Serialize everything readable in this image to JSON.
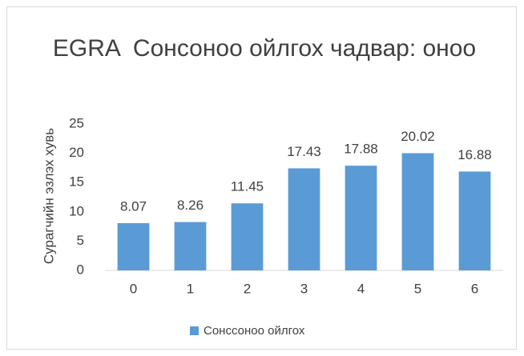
{
  "chart_data": {
    "type": "bar",
    "title": "EGRA  Сонсоноо ойлгох чадвар: оноо",
    "y_label": "Сурагчийн эзлэх хувь",
    "categories": [
      "0",
      "1",
      "2",
      "3",
      "4",
      "5",
      "6"
    ],
    "series": [
      {
        "name": "Сонссоноо ойлгох",
        "color": "#5b9bd5",
        "values": [
          8.07,
          8.26,
          11.45,
          17.43,
          17.88,
          20.02,
          16.88
        ]
      }
    ],
    "ylim": [
      0,
      25
    ],
    "yticks": [
      0,
      5,
      10,
      15,
      20,
      25
    ],
    "grid": false,
    "legend": "bottom"
  }
}
